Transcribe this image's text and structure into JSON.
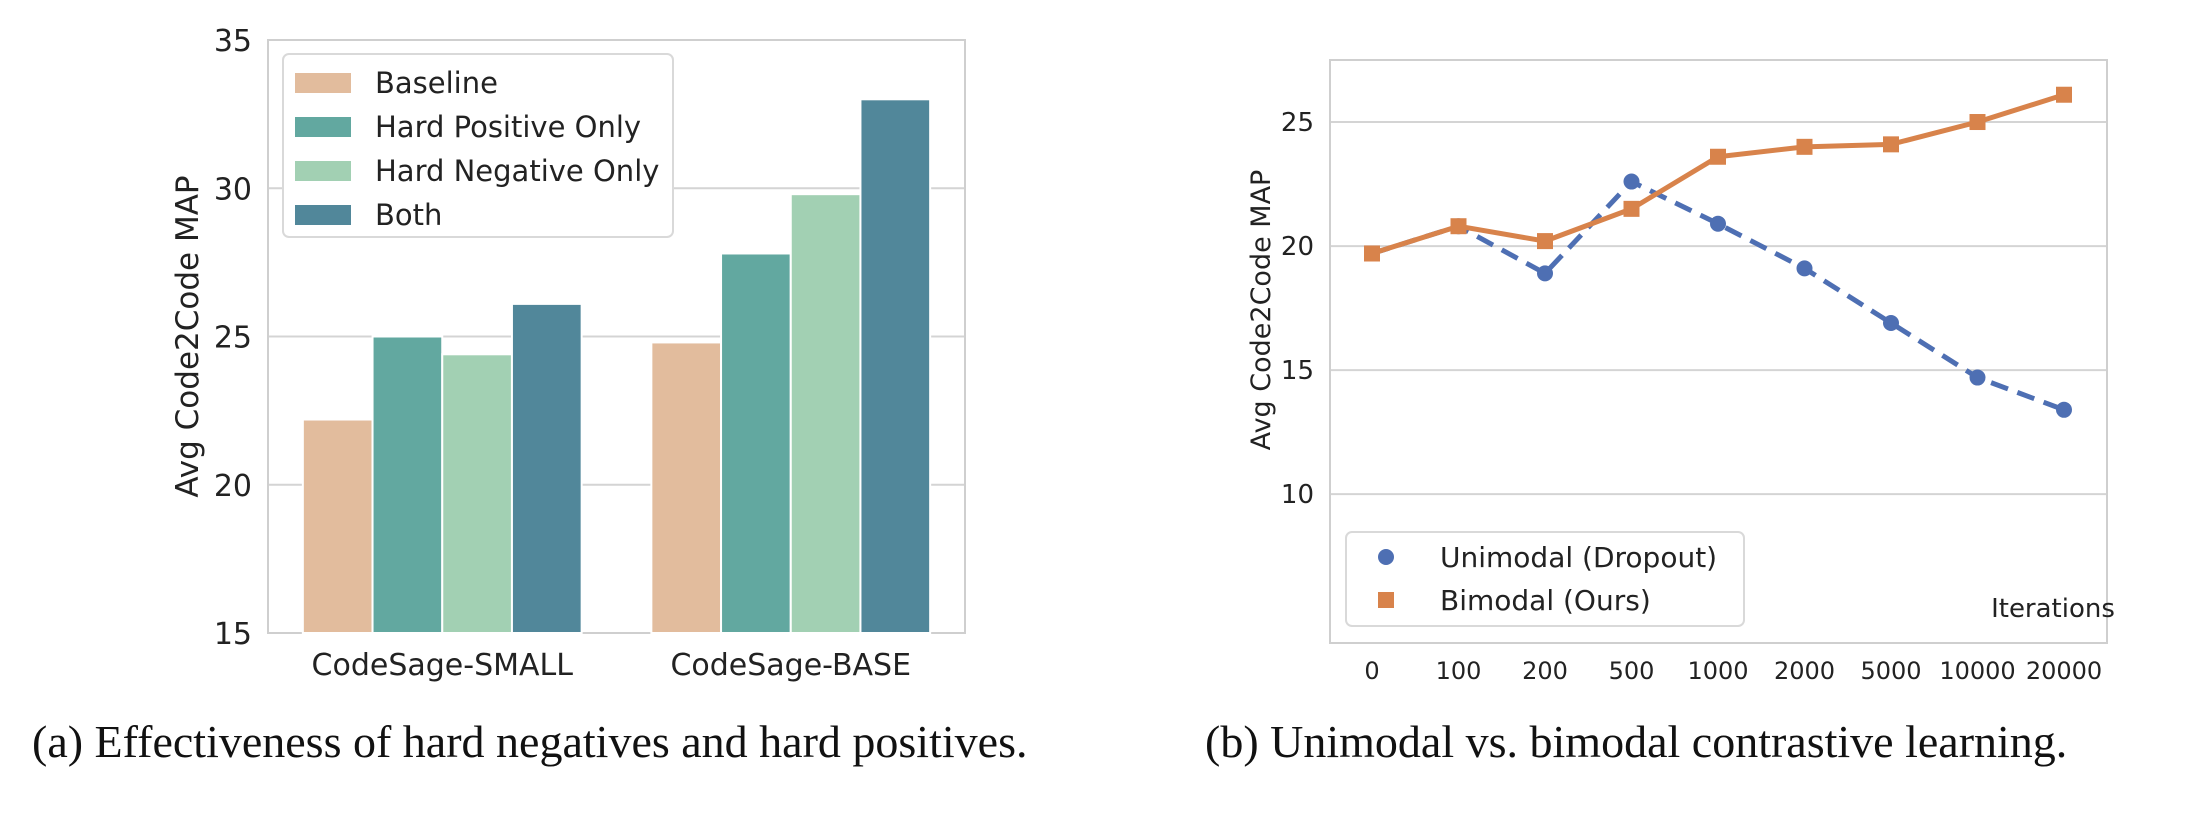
{
  "chart_data": [
    {
      "type": "bar",
      "ylabel": "Avg Code2Code MAP",
      "xlabel": "",
      "ylim": [
        15,
        35
      ],
      "yticks": [
        15,
        20,
        25,
        30,
        35
      ],
      "grid": true,
      "legend_position": "top-left",
      "categories": [
        "CodeSage-SMALL",
        "CodeSage-BASE"
      ],
      "series": [
        {
          "name": "Baseline",
          "color": "#e2bc9d",
          "values": [
            22.2,
            24.8
          ]
        },
        {
          "name": "Hard Positive Only",
          "color": "#62a8a0",
          "values": [
            25.0,
            27.8
          ]
        },
        {
          "name": "Hard Negative Only",
          "color": "#a2d0b3",
          "values": [
            24.4,
            29.8
          ]
        },
        {
          "name": "Both",
          "color": "#51879a",
          "values": [
            26.1,
            33.0
          ]
        }
      ]
    },
    {
      "type": "line",
      "ylabel": "Avg Code2Code MAP",
      "xlabel": "Iterations",
      "yticks": [
        10,
        15,
        20,
        25
      ],
      "ylim": [
        4,
        27.5
      ],
      "grid": true,
      "legend_position": "bottom-left",
      "categories": [
        "0",
        "100",
        "200",
        "500",
        "1000",
        "2000",
        "5000",
        "10000",
        "20000"
      ],
      "series": [
        {
          "name": "Unimodal (Dropout)",
          "color": "#4e6fb3",
          "marker": "circle",
          "linestyle": "dashed",
          "values": [
            19.7,
            20.8,
            18.9,
            22.6,
            20.9,
            19.1,
            16.9,
            14.7,
            13.4
          ]
        },
        {
          "name": "Bimodal (Ours)",
          "color": "#d8834b",
          "marker": "square",
          "linestyle": "solid",
          "values": [
            19.7,
            20.8,
            20.2,
            21.5,
            23.6,
            24.0,
            24.1,
            25.0,
            26.1
          ]
        }
      ]
    }
  ],
  "captions": {
    "a": "(a) Effectiveness of hard negatives and hard positives.",
    "b": "(b) Unimodal vs. bimodal contrastive learning."
  }
}
